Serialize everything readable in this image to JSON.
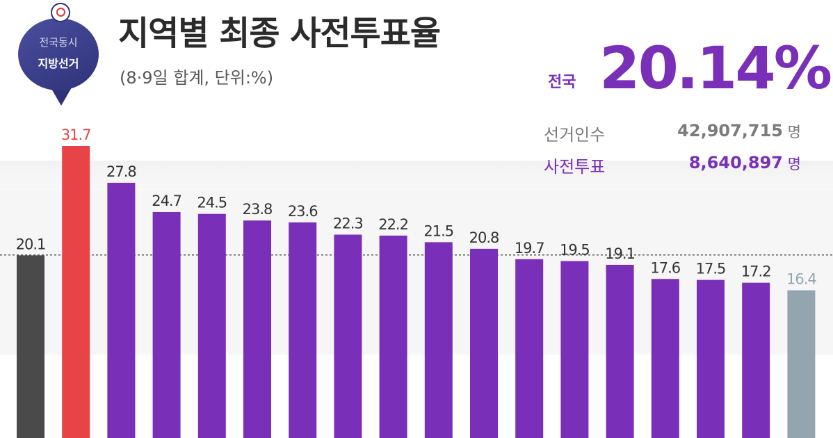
{
  "header": {
    "badge_line1": "전국동시",
    "badge_line2": "지방선거",
    "title": "지역별 최종 사전투표율",
    "subtitle": "(8·9일 합계, 단위:%)"
  },
  "national": {
    "label": "전국",
    "rate": "20.14%",
    "voters_label": "선거인수",
    "voters_value": "42,907,715",
    "voters_unit": "명",
    "early_label": "사전투표",
    "early_value": "8,640,897",
    "early_unit": "명"
  },
  "colors": {
    "first_bar": "#4a4a4a",
    "highest_bar": "#e84347",
    "region_bar": "#7a2fb8",
    "lowest_bar": "#93a6b0",
    "highest_label": "#e84347",
    "lowest_label": "#93a6b0",
    "label": "#333333",
    "reference_line": "#555555"
  },
  "chart_data": {
    "type": "bar",
    "title": "지역별 최종 사전투표율",
    "subtitle": "(8·9일 합계, 단위:%)",
    "values": [
      20.1,
      31.7,
      27.8,
      24.7,
      24.5,
      23.8,
      23.6,
      22.3,
      22.2,
      21.5,
      20.8,
      19.7,
      19.5,
      19.1,
      17.6,
      17.5,
      17.2,
      16.4
    ],
    "labels": [
      "20.1",
      "31.7",
      "27.8",
      "24.7",
      "24.5",
      "23.8",
      "23.6",
      "22.3",
      "22.2",
      "21.5",
      "20.8",
      "19.7",
      "19.5",
      "19.1",
      "17.6",
      "17.5",
      "17.2",
      "16.4"
    ],
    "reference_line": 20.14,
    "ylim": [
      0,
      31.7
    ],
    "grid": false,
    "legend": "none"
  }
}
